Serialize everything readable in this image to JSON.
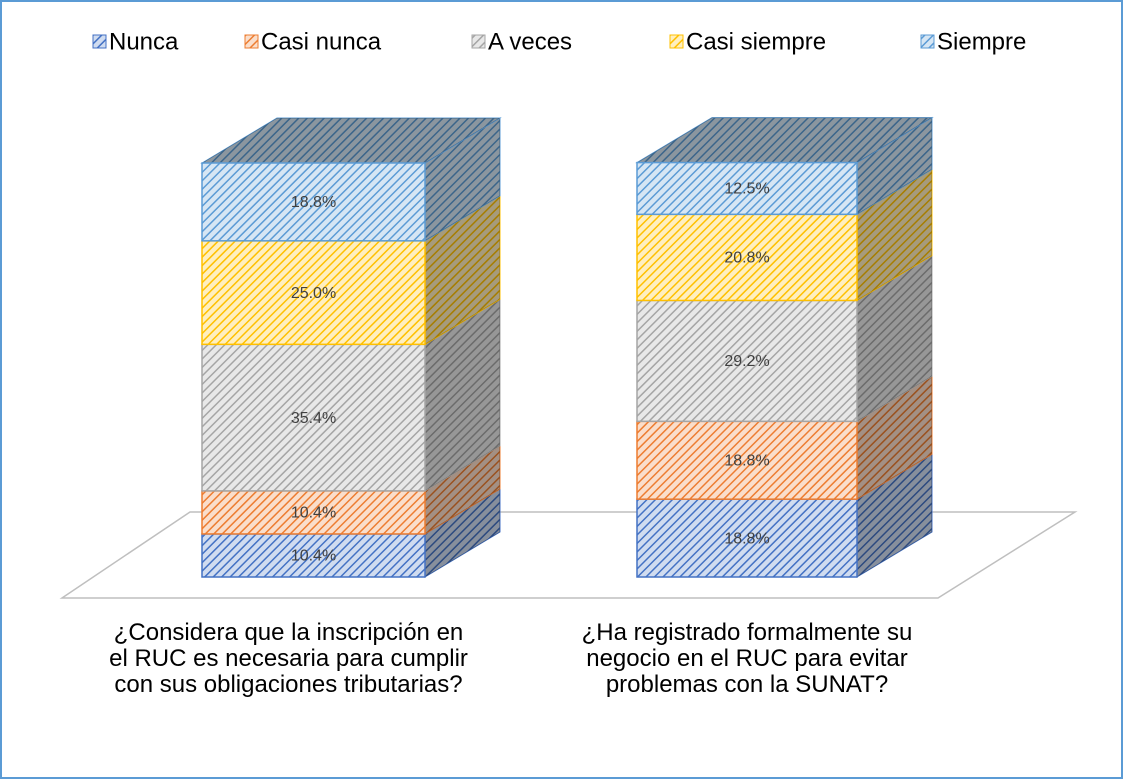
{
  "chart_data": {
    "type": "bar3d-stacked",
    "categories": [
      "¿Considera que la inscripción en el RUC es necesaria para cumplir con sus obligaciones tributarias?",
      "¿Ha registrado formalmente su negocio en el RUC para evitar problemas con la SUNAT?"
    ],
    "series": [
      {
        "name": "Nunca",
        "color": "#4472c4",
        "values": [
          10.4,
          18.8
        ],
        "value_labels": [
          "10.4%",
          "18.8%"
        ]
      },
      {
        "name": "Casi nunca",
        "color": "#ed7d31",
        "values": [
          10.4,
          18.8
        ],
        "value_labels": [
          "10.4%",
          "18.8%"
        ]
      },
      {
        "name": "A veces",
        "color": "#a5a5a5",
        "values": [
          35.4,
          29.2
        ],
        "value_labels": [
          "35.4%",
          "29.2%"
        ]
      },
      {
        "name": "Casi siempre",
        "color": "#ffc000",
        "values": [
          25.0,
          20.8
        ],
        "value_labels": [
          "25.0%",
          "20.8%"
        ]
      },
      {
        "name": "Siempre",
        "color": "#5b9bd5",
        "values": [
          18.8,
          12.5
        ],
        "value_labels": [
          "18.8%",
          "12.5%"
        ]
      }
    ],
    "ylim": [
      0,
      100
    ],
    "legend": "top"
  }
}
